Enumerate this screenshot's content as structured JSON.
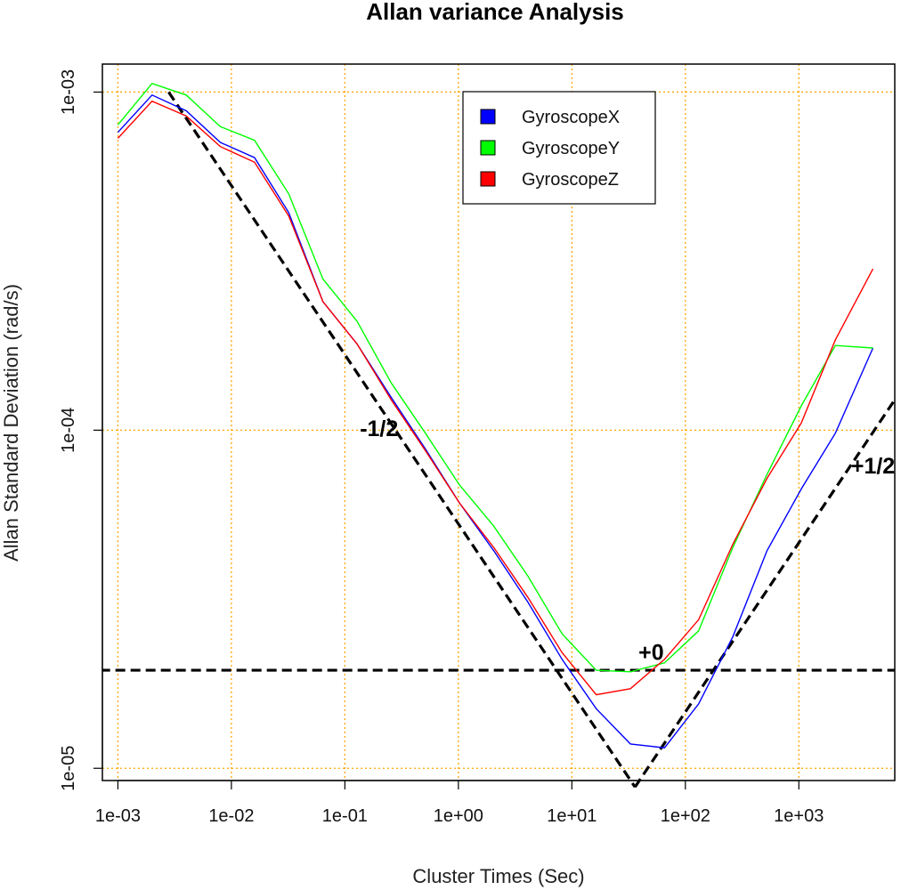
{
  "chart_data": {
    "type": "line",
    "title": "Allan variance Analysis",
    "xlabel": "Cluster Times (Sec)",
    "ylabel": "Allan Standard Deviation (rad/s)",
    "x_scale": "log",
    "y_scale": "log",
    "xlim": [
      0.00073,
      7000
    ],
    "ylim": [
      9.2e-06,
      0.00121
    ],
    "x_ticks": [
      {
        "value": 0.001,
        "label": "1e-03"
      },
      {
        "value": 0.01,
        "label": "1e-02"
      },
      {
        "value": 0.1,
        "label": "1e-01"
      },
      {
        "value": 1,
        "label": "1e+00"
      },
      {
        "value": 10,
        "label": "1e+01"
      },
      {
        "value": 100,
        "label": "1e+02"
      },
      {
        "value": 1000,
        "label": "1e+03"
      }
    ],
    "y_ticks": [
      {
        "value": 1e-05,
        "label": "1e-05"
      },
      {
        "value": 0.0001,
        "label": "1e-04"
      },
      {
        "value": 0.001,
        "label": "1e-03"
      }
    ],
    "grid": true,
    "grid_color": "#ffa500",
    "legend_position": "top-right",
    "series": [
      {
        "name": "GyroscopeX",
        "color": "#0000ff",
        "x": [
          0.001,
          0.002,
          0.004,
          0.008,
          0.016,
          0.032,
          0.064,
          0.128,
          0.256,
          0.512,
          1.02,
          2.05,
          4.1,
          8.2,
          16.4,
          32.8,
          65.5,
          131,
          262,
          524,
          1050,
          2100,
          4500
        ],
        "y": [
          0.00076,
          0.00098,
          0.00088,
          0.00071,
          0.00064,
          0.00044,
          0.00024,
          0.00018,
          0.000125,
          8.8e-05,
          6.1e-05,
          4.4e-05,
          3.1e-05,
          2.1e-05,
          1.5e-05,
          1.18e-05,
          1.15e-05,
          1.55e-05,
          2.45e-05,
          4.4e-05,
          6.7e-05,
          9.8e-05,
          0.000175
        ]
      },
      {
        "name": "GyroscopeY",
        "color": "#00ff00",
        "x": [
          0.001,
          0.002,
          0.004,
          0.008,
          0.016,
          0.032,
          0.064,
          0.128,
          0.256,
          0.512,
          1.02,
          2.05,
          4.1,
          8.2,
          16.4,
          32.8,
          65.5,
          131,
          262,
          524,
          1050,
          2100,
          4500
        ],
        "y": [
          0.0008,
          0.00106,
          0.00098,
          0.00079,
          0.00072,
          0.0005,
          0.00028,
          0.00021,
          0.000138,
          9.8e-05,
          6.9e-05,
          5.2e-05,
          3.7e-05,
          2.5e-05,
          1.95e-05,
          1.93e-05,
          2.05e-05,
          2.55e-05,
          4.5e-05,
          7.4e-05,
          0.000118,
          0.000178,
          0.000175
        ]
      },
      {
        "name": "GyroscopeZ",
        "color": "#ff0000",
        "x": [
          0.001,
          0.002,
          0.004,
          0.008,
          0.016,
          0.032,
          0.064,
          0.128,
          0.256,
          0.512,
          1.02,
          2.05,
          4.1,
          8.2,
          16.4,
          32.8,
          65.5,
          131,
          262,
          524,
          1050,
          2100,
          4500
        ],
        "y": [
          0.00073,
          0.00094,
          0.00085,
          0.00069,
          0.00062,
          0.00043,
          0.00024,
          0.00018,
          0.000123,
          8.7e-05,
          6.1e-05,
          4.5e-05,
          3.2e-05,
          2.2e-05,
          1.65e-05,
          1.72e-05,
          2.1e-05,
          2.75e-05,
          4.6e-05,
          7.2e-05,
          0.000105,
          0.000185,
          0.0003
        ]
      }
    ],
    "reference_lines": [
      {
        "x": [
          0.0028,
          36
        ],
        "y": [
          0.001,
          8.8e-06
        ],
        "style": "dashed",
        "color": "#000000"
      },
      {
        "x": [
          0.0007,
          9000
        ],
        "y": [
          1.95e-05,
          1.95e-05
        ],
        "style": "dashed",
        "color": "#000000"
      },
      {
        "x": [
          36,
          7000
        ],
        "y": [
          8.8e-06,
          0.000123
        ],
        "style": "dashed",
        "color": "#000000"
      }
    ],
    "annotations": [
      {
        "text": "-1/2",
        "x": 0.2,
        "y": 0.0001
      },
      {
        "text": "+0",
        "x": 50,
        "y": 2.18e-05
      },
      {
        "text": "+1/2",
        "x": 4500,
        "y": 7.75e-05
      }
    ]
  }
}
